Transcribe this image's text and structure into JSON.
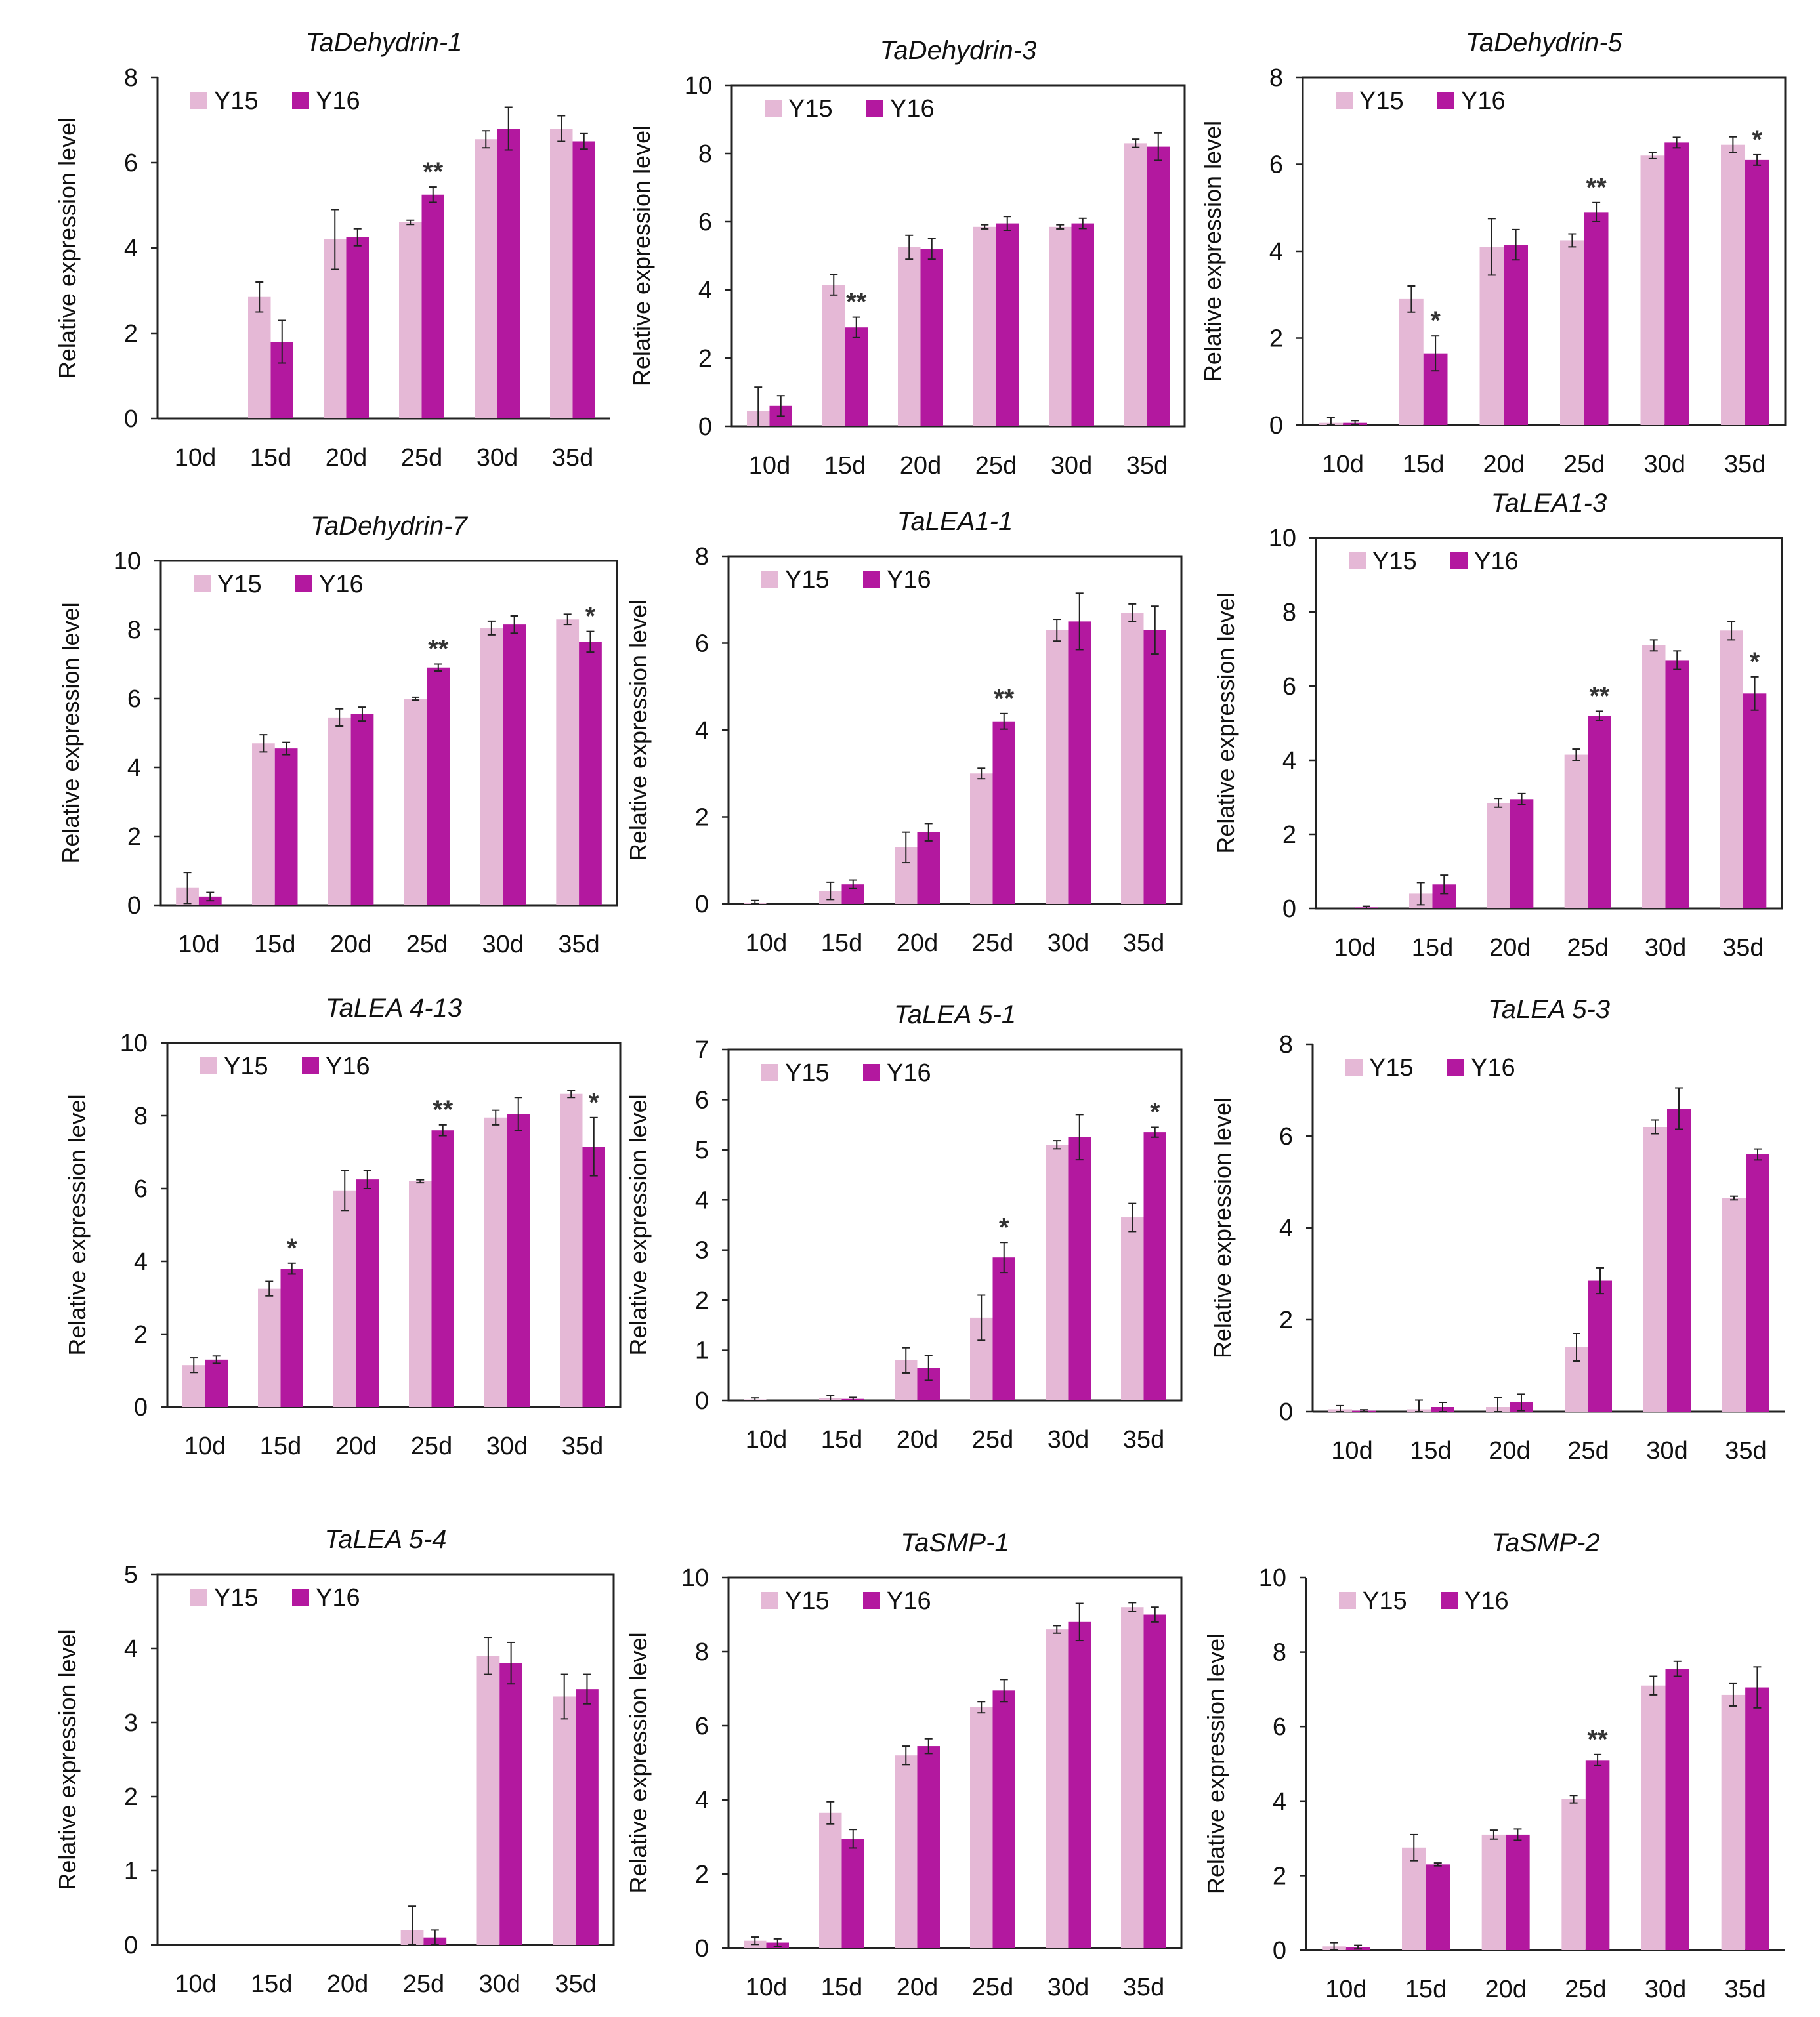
{
  "figure": {
    "colors": {
      "Y15": "#e5b8d6",
      "Y16": "#b3189f"
    }
  },
  "chart_data": [
    {
      "type": "bar",
      "title": "TaDehydrin-1",
      "ylabel": "Relative expression level",
      "ylim": [
        0,
        8
      ],
      "yticks": [
        "0",
        "2",
        "4",
        "6",
        "8"
      ],
      "frame": false,
      "legend_position": "top-left",
      "categories": [
        "10d",
        "15d",
        "20d",
        "25d",
        "30d",
        "35d"
      ],
      "series": [
        {
          "name": "Y15",
          "values": [
            0,
            2.85,
            4.2,
            4.6,
            6.55,
            6.8
          ],
          "errors": [
            0,
            0.35,
            0.7,
            0.05,
            0.2,
            0.3
          ]
        },
        {
          "name": "Y16",
          "values": [
            0,
            1.8,
            4.25,
            5.25,
            6.8,
            6.5
          ],
          "errors": [
            0,
            0.5,
            0.2,
            0.18,
            0.5,
            0.18
          ]
        }
      ],
      "annotations": [
        {
          "category": "25d",
          "text": "**"
        }
      ]
    },
    {
      "type": "bar",
      "title": "TaDehydrin-3",
      "ylabel": "Relative expression level",
      "ylim": [
        0,
        10
      ],
      "yticks": [
        "0",
        "2",
        "4",
        "6",
        "8",
        "10"
      ],
      "frame": true,
      "legend_position": "top-left",
      "categories": [
        "10d",
        "15d",
        "20d",
        "25d",
        "30d",
        "35d"
      ],
      "series": [
        {
          "name": "Y15",
          "values": [
            0.45,
            4.15,
            5.25,
            5.85,
            5.85,
            8.3
          ],
          "errors": [
            0.7,
            0.3,
            0.35,
            0.06,
            0.06,
            0.12
          ]
        },
        {
          "name": "Y16",
          "values": [
            0.6,
            2.9,
            5.2,
            5.95,
            5.95,
            8.2
          ],
          "errors": [
            0.3,
            0.3,
            0.3,
            0.2,
            0.15,
            0.4
          ]
        }
      ],
      "annotations": [
        {
          "category": "15d",
          "text": "**"
        }
      ]
    },
    {
      "type": "bar",
      "title": "TaDehydrin-5",
      "ylabel": "Relative expression level",
      "ylim": [
        0,
        8
      ],
      "yticks": [
        "0",
        "2",
        "4",
        "6",
        "8"
      ],
      "frame": true,
      "legend_position": "top-left",
      "categories": [
        "10d",
        "15d",
        "20d",
        "25d",
        "30d",
        "35d"
      ],
      "series": [
        {
          "name": "Y15",
          "values": [
            0.05,
            2.9,
            4.1,
            4.25,
            6.2,
            6.45
          ],
          "errors": [
            0.12,
            0.3,
            0.65,
            0.15,
            0.07,
            0.18
          ]
        },
        {
          "name": "Y16",
          "values": [
            0.05,
            1.65,
            4.15,
            4.9,
            6.5,
            6.1
          ],
          "errors": [
            0.05,
            0.4,
            0.35,
            0.22,
            0.12,
            0.12
          ]
        }
      ],
      "annotations": [
        {
          "category": "15d",
          "text": "*"
        },
        {
          "category": "25d",
          "text": "**"
        },
        {
          "category": "35d",
          "text": "*"
        }
      ]
    },
    {
      "type": "bar",
      "title": "TaDehydrin-7",
      "ylabel": "Relative expression level",
      "ylim": [
        0,
        10
      ],
      "yticks": [
        "0",
        "2",
        "4",
        "6",
        "8",
        "10"
      ],
      "frame": true,
      "legend_position": "top-left",
      "categories": [
        "10d",
        "15d",
        "20d",
        "25d",
        "30d",
        "35d"
      ],
      "series": [
        {
          "name": "Y15",
          "values": [
            0.5,
            4.7,
            5.45,
            6.0,
            8.05,
            8.3
          ],
          "errors": [
            0.45,
            0.25,
            0.25,
            0.04,
            0.2,
            0.15
          ]
        },
        {
          "name": "Y16",
          "values": [
            0.25,
            4.55,
            5.55,
            6.9,
            8.15,
            7.65
          ],
          "errors": [
            0.12,
            0.18,
            0.2,
            0.1,
            0.25,
            0.3
          ]
        }
      ],
      "annotations": [
        {
          "category": "25d",
          "text": "**"
        },
        {
          "category": "35d",
          "text": "*"
        }
      ]
    },
    {
      "type": "bar",
      "title": "TaLEA1-1",
      "ylabel": "Relative expression level",
      "ylim": [
        0,
        8
      ],
      "yticks": [
        "0",
        "2",
        "4",
        "6",
        "8"
      ],
      "frame": true,
      "legend_position": "top-left",
      "categories": [
        "10d",
        "15d",
        "20d",
        "25d",
        "30d",
        "35d"
      ],
      "series": [
        {
          "name": "Y15",
          "values": [
            0.03,
            0.3,
            1.3,
            3.0,
            6.3,
            6.7
          ],
          "errors": [
            0.05,
            0.2,
            0.35,
            0.12,
            0.25,
            0.2
          ]
        },
        {
          "name": "Y16",
          "values": [
            0,
            0.45,
            1.65,
            4.2,
            6.5,
            6.3
          ],
          "errors": [
            0,
            0.1,
            0.2,
            0.18,
            0.65,
            0.55
          ]
        }
      ],
      "annotations": [
        {
          "category": "25d",
          "text": "**"
        }
      ]
    },
    {
      "type": "bar",
      "title": "TaLEA1-3",
      "ylabel": "Relative expression level",
      "ylim": [
        0,
        10
      ],
      "yticks": [
        "0",
        "2",
        "4",
        "6",
        "8",
        "10"
      ],
      "frame": true,
      "legend_position": "top-left",
      "categories": [
        "10d",
        "15d",
        "20d",
        "25d",
        "30d",
        "35d"
      ],
      "series": [
        {
          "name": "Y15",
          "values": [
            0,
            0.4,
            2.85,
            4.15,
            7.1,
            7.5
          ],
          "errors": [
            0,
            0.3,
            0.12,
            0.15,
            0.15,
            0.25
          ]
        },
        {
          "name": "Y16",
          "values": [
            0.03,
            0.65,
            2.95,
            5.2,
            6.7,
            5.8
          ],
          "errors": [
            0.03,
            0.25,
            0.15,
            0.12,
            0.25,
            0.45
          ]
        }
      ],
      "annotations": [
        {
          "category": "25d",
          "text": "**"
        },
        {
          "category": "35d",
          "text": "*"
        }
      ]
    },
    {
      "type": "bar",
      "title": "TaLEA 4-13",
      "ylabel": "Relative expression level",
      "ylim": [
        0,
        10
      ],
      "yticks": [
        "0",
        "2",
        "4",
        "6",
        "8",
        "10"
      ],
      "frame": true,
      "legend_position": "top-left",
      "categories": [
        "10d",
        "15d",
        "20d",
        "25d",
        "30d",
        "35d"
      ],
      "series": [
        {
          "name": "Y15",
          "values": [
            1.15,
            3.25,
            5.95,
            6.2,
            7.95,
            8.6
          ],
          "errors": [
            0.2,
            0.2,
            0.55,
            0.04,
            0.2,
            0.1
          ]
        },
        {
          "name": "Y16",
          "values": [
            1.3,
            3.8,
            6.25,
            7.6,
            8.05,
            7.15
          ],
          "errors": [
            0.1,
            0.15,
            0.25,
            0.15,
            0.45,
            0.8
          ]
        }
      ],
      "annotations": [
        {
          "category": "15d",
          "text": "*"
        },
        {
          "category": "25d",
          "text": "**"
        },
        {
          "category": "35d",
          "text": "*"
        }
      ]
    },
    {
      "type": "bar",
      "title": "TaLEA 5-1",
      "ylabel": "Relative expression level",
      "ylim": [
        0,
        7
      ],
      "yticks": [
        "0",
        "1",
        "2",
        "3",
        "4",
        "5",
        "6",
        "7"
      ],
      "frame": true,
      "legend_position": "top-left",
      "categories": [
        "10d",
        "15d",
        "20d",
        "25d",
        "30d",
        "35d"
      ],
      "series": [
        {
          "name": "Y15",
          "values": [
            0.02,
            0.05,
            0.8,
            1.65,
            5.1,
            3.65
          ],
          "errors": [
            0.03,
            0.05,
            0.25,
            0.45,
            0.08,
            0.28
          ]
        },
        {
          "name": "Y16",
          "values": [
            0,
            0.03,
            0.65,
            2.85,
            5.25,
            5.35
          ],
          "errors": [
            0,
            0.03,
            0.25,
            0.3,
            0.45,
            0.1
          ]
        }
      ],
      "annotations": [
        {
          "category": "25d",
          "text": "*"
        },
        {
          "category": "35d",
          "text": "*"
        }
      ]
    },
    {
      "type": "bar",
      "title": "TaLEA 5-3",
      "ylabel": "Relative expression level",
      "ylim": [
        0,
        8
      ],
      "yticks": [
        "0",
        "2",
        "4",
        "6",
        "8"
      ],
      "frame": false,
      "legend_position": "top-left",
      "categories": [
        "10d",
        "15d",
        "20d",
        "25d",
        "30d",
        "35d"
      ],
      "series": [
        {
          "name": "Y15",
          "values": [
            0.05,
            0.05,
            0.1,
            1.4,
            6.2,
            4.65
          ],
          "errors": [
            0.08,
            0.2,
            0.2,
            0.3,
            0.15,
            0.04
          ]
        },
        {
          "name": "Y16",
          "values": [
            0.02,
            0.1,
            0.2,
            2.85,
            6.6,
            5.6
          ],
          "errors": [
            0.02,
            0.1,
            0.18,
            0.28,
            0.45,
            0.12
          ]
        }
      ],
      "annotations": []
    },
    {
      "type": "bar",
      "title": "TaLEA 5-4",
      "ylabel": "Relative expression level",
      "ylim": [
        0,
        5
      ],
      "yticks": [
        "0",
        "1",
        "2",
        "3",
        "4",
        "5"
      ],
      "frame": true,
      "legend_position": "top-left",
      "categories": [
        "10d",
        "15d",
        "20d",
        "25d",
        "30d",
        "35d"
      ],
      "series": [
        {
          "name": "Y15",
          "values": [
            0,
            0,
            0,
            0.2,
            3.9,
            3.35
          ],
          "errors": [
            0,
            0,
            0,
            0.32,
            0.25,
            0.3
          ]
        },
        {
          "name": "Y16",
          "values": [
            0,
            0,
            0,
            0.1,
            3.8,
            3.45
          ],
          "errors": [
            0,
            0,
            0,
            0.1,
            0.28,
            0.2
          ]
        }
      ],
      "annotations": []
    },
    {
      "type": "bar",
      "title": "TaSMP-1",
      "ylabel": "Relative expression level",
      "ylim": [
        0,
        10
      ],
      "yticks": [
        "0",
        "2",
        "4",
        "6",
        "8",
        "10"
      ],
      "frame": true,
      "legend_position": "top-left",
      "categories": [
        "10d",
        "15d",
        "20d",
        "25d",
        "30d",
        "35d"
      ],
      "series": [
        {
          "name": "Y15",
          "values": [
            0.2,
            3.65,
            5.2,
            6.5,
            8.6,
            9.2
          ],
          "errors": [
            0.1,
            0.3,
            0.25,
            0.15,
            0.1,
            0.12
          ]
        },
        {
          "name": "Y16",
          "values": [
            0.15,
            2.95,
            5.45,
            6.95,
            8.8,
            9.0
          ],
          "errors": [
            0.1,
            0.25,
            0.2,
            0.3,
            0.5,
            0.2
          ]
        }
      ],
      "annotations": []
    },
    {
      "type": "bar",
      "title": "TaSMP-2",
      "ylabel": "Relative expression level",
      "ylim": [
        0,
        10
      ],
      "yticks": [
        "0",
        "2",
        "4",
        "6",
        "8",
        "10"
      ],
      "frame": false,
      "legend_position": "top-left",
      "categories": [
        "10d",
        "15d",
        "20d",
        "25d",
        "30d",
        "35d"
      ],
      "series": [
        {
          "name": "Y15",
          "values": [
            0.1,
            2.75,
            3.1,
            4.05,
            7.1,
            6.85
          ],
          "errors": [
            0.1,
            0.35,
            0.12,
            0.1,
            0.25,
            0.3
          ]
        },
        {
          "name": "Y16",
          "values": [
            0.08,
            2.3,
            3.1,
            5.1,
            7.55,
            7.05
          ],
          "errors": [
            0.05,
            0.04,
            0.15,
            0.15,
            0.2,
            0.55
          ]
        }
      ],
      "annotations": [
        {
          "category": "25d",
          "text": "**"
        }
      ]
    }
  ]
}
